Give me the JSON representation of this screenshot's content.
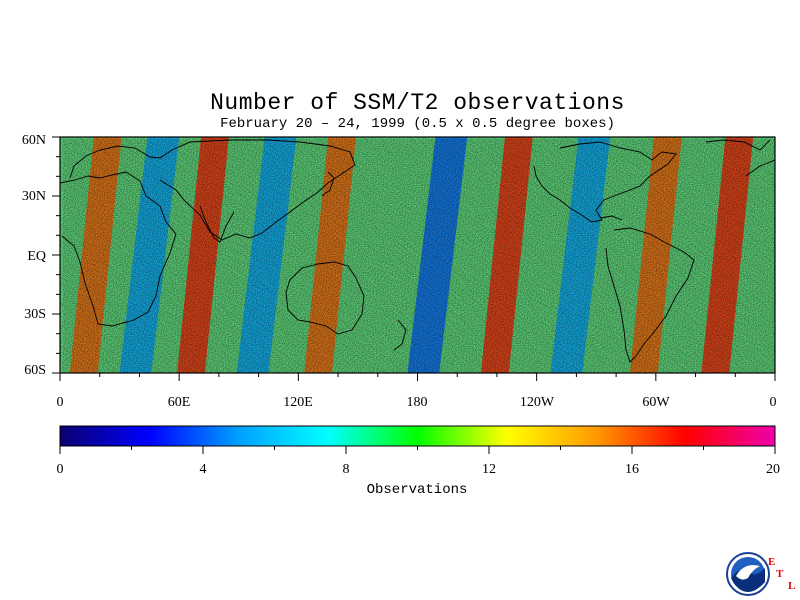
{
  "title": "Number of SSM/T2 observations",
  "subtitle": "February 20 – 24, 1999 (0.5 x 0.5 degree boxes)",
  "latitude_labels": [
    "60N",
    "30N",
    "EQ",
    "30S",
    "60S"
  ],
  "longitude_labels": [
    "0",
    "60E",
    "120E",
    "180",
    "120W",
    "60W",
    "0"
  ],
  "colorbar": {
    "title": "Observations",
    "ticks": [
      "0",
      "4",
      "8",
      "12",
      "16",
      "20"
    ],
    "min": 0,
    "max": 20,
    "colors": [
      "#0a0070",
      "#0000ff",
      "#00a0ff",
      "#00ffff",
      "#00ff00",
      "#ffff00",
      "#ff9900",
      "#ff0000",
      "#ee00aa"
    ]
  },
  "logo": {
    "name": "NOAA",
    "letters": [
      "E",
      "T",
      "L"
    ]
  },
  "chart_data": {
    "type": "heatmap",
    "title": "Number of SSM/T2 observations",
    "subtitle": "February 20 – 24, 1999 (0.5 x 0.5 degree boxes)",
    "xlim": [
      0,
      360
    ],
    "ylim": [
      -60,
      60
    ],
    "value_range": [
      0,
      20
    ],
    "colorbar_label": "Observations",
    "typical_value": 9,
    "high_swaths": [
      {
        "lon_at_equator": 18,
        "lat_range": [
          -60,
          60
        ],
        "peak": 16
      },
      {
        "lon_at_equator": 72,
        "lat_range": [
          -60,
          60
        ],
        "peak": 17
      },
      {
        "lon_at_equator": 136,
        "lat_range": [
          -60,
          60
        ],
        "peak": 16
      },
      {
        "lon_at_equator": 225,
        "lat_range": [
          -60,
          60
        ],
        "peak": 17
      },
      {
        "lon_at_equator": 300,
        "lat_range": [
          -60,
          60
        ],
        "peak": 16
      },
      {
        "lon_at_equator": 336,
        "lat_range": [
          -60,
          60
        ],
        "peak": 17
      }
    ],
    "low_swaths": [
      {
        "lon_at_equator": 45,
        "lat_range": [
          -60,
          60
        ],
        "trough": 5
      },
      {
        "lon_at_equator": 104,
        "lat_range": [
          -60,
          60
        ],
        "trough": 5
      },
      {
        "lon_at_equator": 190,
        "lat_range": [
          -60,
          60
        ],
        "trough": 4
      },
      {
        "lon_at_equator": 262,
        "lat_range": [
          -60,
          60
        ],
        "trough": 5
      }
    ]
  }
}
